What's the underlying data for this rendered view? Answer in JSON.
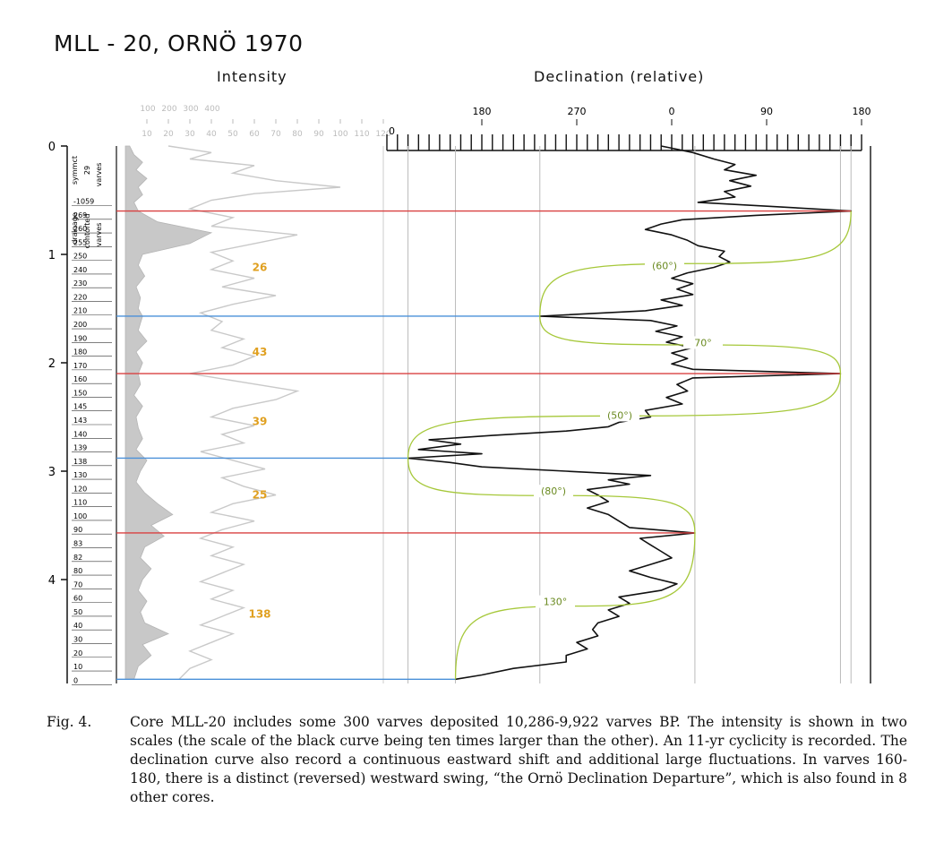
{
  "figure": {
    "title": "MLL - 20, ORNÖ 1970",
    "intensity_label": "Intensity",
    "declination_label": "Declination (relative)",
    "caption_label": "Fig. 4.",
    "caption_text": "Core MLL-20 includes some 300 varves deposited 10,286-9,922 varves BP. The intensity is shown in two scales (the scale of the black curve being ten times larger than the other). An 11-yr cyclicity is recorded. The declination curve also record a continuous eastward shift and additional large fluctuations. In varves 160-180, there is a distinct (reversed) westward swing, “the Ornö Declination Departure”, which is also found in 8 other cores."
  },
  "chart_data": {
    "type": "line",
    "depth_axis": {
      "ticks": [
        "0",
        "1",
        "2",
        "3",
        "4"
      ],
      "range": [
        0,
        5
      ]
    },
    "depth_side_labels": [
      "symmct",
      "29",
      "varves",
      "drainage",
      "contorted",
      "varves"
    ],
    "varve_labels": [
      "-1059",
      "269",
      "260",
      "255",
      "250",
      "240",
      "230",
      "220",
      "210",
      "200",
      "190",
      "180",
      "170",
      "160",
      "150",
      "145",
      "143",
      "140",
      "139",
      "138",
      "130",
      "120",
      "110",
      "100",
      "90",
      "83",
      "82",
      "80",
      "70",
      "60",
      "50",
      "40",
      "30",
      "20",
      "10",
      "0"
    ],
    "intensity_axis": {
      "top_ticks": [
        "100",
        "200",
        "300",
        "400"
      ],
      "bottom_ticks": [
        "10",
        "20",
        "30",
        "40",
        "50",
        "60",
        "70",
        "80",
        "90",
        "100",
        "110",
        "120"
      ],
      "range": [
        0,
        120
      ]
    },
    "declination_axis": {
      "ticks": [
        "180",
        "270",
        "0",
        "90",
        "180"
      ],
      "tick_values": [
        -180,
        -90,
        0,
        90,
        180
      ]
    },
    "swing_counts": [
      {
        "label": "26",
        "depth": 1.12
      },
      {
        "label": "43",
        "depth": 1.9
      },
      {
        "label": "39",
        "depth": 2.54
      },
      {
        "label": "25",
        "depth": 3.22
      },
      {
        "label": "138",
        "depth": 4.32
      }
    ],
    "swing_angles": [
      {
        "label": "(60°)",
        "depth": 1.12
      },
      {
        "label": "70°",
        "depth": 1.83
      },
      {
        "label": "(50°)",
        "depth": 2.5
      },
      {
        "label": "(80°)",
        "depth": 3.2
      },
      {
        "label": "130°",
        "depth": 4.22
      }
    ],
    "markers": [
      {
        "type": "east",
        "depth": 0.6,
        "decl": 170,
        "color": "#d94040"
      },
      {
        "type": "west",
        "depth": 1.57,
        "decl": -125,
        "color": "#4a90d9"
      },
      {
        "type": "east",
        "depth": 2.1,
        "decl": 160,
        "color": "#d94040"
      },
      {
        "type": "west",
        "depth": 2.88,
        "decl": -250,
        "color": "#4a90d9"
      },
      {
        "type": "east",
        "depth": 3.57,
        "decl": 22,
        "color": "#d94040"
      },
      {
        "type": "west",
        "depth": 4.92,
        "decl": -205,
        "color": "#4a90d9"
      }
    ],
    "declination_series": [
      [
        0.0,
        -10
      ],
      [
        0.06,
        20
      ],
      [
        0.12,
        40
      ],
      [
        0.17,
        60
      ],
      [
        0.22,
        50
      ],
      [
        0.27,
        80
      ],
      [
        0.32,
        55
      ],
      [
        0.37,
        75
      ],
      [
        0.42,
        50
      ],
      [
        0.47,
        60
      ],
      [
        0.52,
        25
      ],
      [
        0.56,
        100
      ],
      [
        0.6,
        170
      ],
      [
        0.64,
        80
      ],
      [
        0.68,
        10
      ],
      [
        0.72,
        -10
      ],
      [
        0.77,
        -25
      ],
      [
        0.82,
        0
      ],
      [
        0.87,
        15
      ],
      [
        0.92,
        25
      ],
      [
        0.97,
        50
      ],
      [
        1.02,
        45
      ],
      [
        1.07,
        55
      ],
      [
        1.12,
        40
      ],
      [
        1.17,
        15
      ],
      [
        1.22,
        0
      ],
      [
        1.27,
        20
      ],
      [
        1.32,
        5
      ],
      [
        1.37,
        20
      ],
      [
        1.42,
        -10
      ],
      [
        1.47,
        10
      ],
      [
        1.52,
        -25
      ],
      [
        1.57,
        -125
      ],
      [
        1.61,
        -20
      ],
      [
        1.66,
        5
      ],
      [
        1.71,
        -15
      ],
      [
        1.76,
        10
      ],
      [
        1.81,
        -5
      ],
      [
        1.86,
        20
      ],
      [
        1.91,
        0
      ],
      [
        1.96,
        15
      ],
      [
        2.01,
        0
      ],
      [
        2.06,
        20
      ],
      [
        2.1,
        160
      ],
      [
        2.14,
        20
      ],
      [
        2.2,
        5
      ],
      [
        2.26,
        15
      ],
      [
        2.32,
        -5
      ],
      [
        2.38,
        10
      ],
      [
        2.44,
        -25
      ],
      [
        2.5,
        -20
      ],
      [
        2.55,
        -50
      ],
      [
        2.59,
        -60
      ],
      [
        2.63,
        -100
      ],
      [
        2.67,
        -170
      ],
      [
        2.71,
        -230
      ],
      [
        2.75,
        -200
      ],
      [
        2.8,
        -240
      ],
      [
        2.84,
        -180
      ],
      [
        2.88,
        -250
      ],
      [
        2.92,
        -210
      ],
      [
        2.96,
        -180
      ],
      [
        3.0,
        -100
      ],
      [
        3.04,
        -20
      ],
      [
        3.08,
        -60
      ],
      [
        3.12,
        -40
      ],
      [
        3.17,
        -80
      ],
      [
        3.22,
        -70
      ],
      [
        3.28,
        -60
      ],
      [
        3.34,
        -80
      ],
      [
        3.4,
        -60
      ],
      [
        3.46,
        -50
      ],
      [
        3.52,
        -40
      ],
      [
        3.57,
        22
      ],
      [
        3.62,
        -30
      ],
      [
        3.68,
        -20
      ],
      [
        3.74,
        -10
      ],
      [
        3.8,
        0
      ],
      [
        3.86,
        -20
      ],
      [
        3.92,
        -40
      ],
      [
        3.98,
        -20
      ],
      [
        4.04,
        5
      ],
      [
        4.1,
        -10
      ],
      [
        4.16,
        -50
      ],
      [
        4.22,
        -40
      ],
      [
        4.28,
        -60
      ],
      [
        4.34,
        -50
      ],
      [
        4.4,
        -70
      ],
      [
        4.46,
        -75
      ],
      [
        4.52,
        -70
      ],
      [
        4.58,
        -90
      ],
      [
        4.64,
        -80
      ],
      [
        4.7,
        -100
      ],
      [
        4.76,
        -100
      ],
      [
        4.82,
        -150
      ],
      [
        4.88,
        -180
      ],
      [
        4.92,
        -205
      ]
    ],
    "intensity_black_series": [
      [
        0.0,
        2
      ],
      [
        0.08,
        4
      ],
      [
        0.15,
        8
      ],
      [
        0.22,
        5
      ],
      [
        0.3,
        10
      ],
      [
        0.38,
        6
      ],
      [
        0.45,
        8
      ],
      [
        0.52,
        4
      ],
      [
        0.6,
        6
      ],
      [
        0.7,
        15
      ],
      [
        0.8,
        40
      ],
      [
        0.9,
        30
      ],
      [
        1.0,
        8
      ],
      [
        1.1,
        6
      ],
      [
        1.2,
        9
      ],
      [
        1.3,
        5
      ],
      [
        1.4,
        7
      ],
      [
        1.5,
        6
      ],
      [
        1.57,
        8
      ],
      [
        1.7,
        6
      ],
      [
        1.8,
        10
      ],
      [
        1.9,
        5
      ],
      [
        2.0,
        8
      ],
      [
        2.1,
        6
      ],
      [
        2.2,
        7
      ],
      [
        2.3,
        4
      ],
      [
        2.4,
        8
      ],
      [
        2.5,
        5
      ],
      [
        2.6,
        6
      ],
      [
        2.7,
        8
      ],
      [
        2.8,
        5
      ],
      [
        2.9,
        10
      ],
      [
        3.0,
        7
      ],
      [
        3.1,
        5
      ],
      [
        3.2,
        9
      ],
      [
        3.3,
        15
      ],
      [
        3.4,
        22
      ],
      [
        3.5,
        12
      ],
      [
        3.6,
        18
      ],
      [
        3.7,
        9
      ],
      [
        3.8,
        7
      ],
      [
        3.9,
        12
      ],
      [
        4.0,
        8
      ],
      [
        4.1,
        6
      ],
      [
        4.2,
        10
      ],
      [
        4.3,
        7
      ],
      [
        4.4,
        9
      ],
      [
        4.5,
        20
      ],
      [
        4.6,
        8
      ],
      [
        4.7,
        12
      ],
      [
        4.8,
        6
      ],
      [
        4.92,
        4
      ]
    ],
    "intensity_gray_series": [
      [
        0.0,
        20
      ],
      [
        0.06,
        40
      ],
      [
        0.12,
        30
      ],
      [
        0.18,
        60
      ],
      [
        0.25,
        50
      ],
      [
        0.32,
        70
      ],
      [
        0.38,
        100
      ],
      [
        0.44,
        60
      ],
      [
        0.5,
        40
      ],
      [
        0.58,
        30
      ],
      [
        0.66,
        50
      ],
      [
        0.74,
        40
      ],
      [
        0.82,
        80
      ],
      [
        0.9,
        60
      ],
      [
        0.98,
        40
      ],
      [
        1.06,
        50
      ],
      [
        1.14,
        40
      ],
      [
        1.22,
        60
      ],
      [
        1.3,
        45
      ],
      [
        1.38,
        70
      ],
      [
        1.46,
        50
      ],
      [
        1.54,
        35
      ],
      [
        1.62,
        45
      ],
      [
        1.7,
        40
      ],
      [
        1.78,
        55
      ],
      [
        1.86,
        45
      ],
      [
        1.94,
        60
      ],
      [
        2.02,
        50
      ],
      [
        2.1,
        30
      ],
      [
        2.18,
        55
      ],
      [
        2.26,
        80
      ],
      [
        2.34,
        70
      ],
      [
        2.42,
        50
      ],
      [
        2.5,
        40
      ],
      [
        2.58,
        60
      ],
      [
        2.66,
        45
      ],
      [
        2.74,
        55
      ],
      [
        2.82,
        35
      ],
      [
        2.9,
        50
      ],
      [
        2.98,
        65
      ],
      [
        3.06,
        45
      ],
      [
        3.14,
        55
      ],
      [
        3.22,
        70
      ],
      [
        3.3,
        50
      ],
      [
        3.38,
        40
      ],
      [
        3.46,
        60
      ],
      [
        3.54,
        45
      ],
      [
        3.62,
        35
      ],
      [
        3.7,
        50
      ],
      [
        3.78,
        40
      ],
      [
        3.86,
        55
      ],
      [
        3.94,
        45
      ],
      [
        4.02,
        35
      ],
      [
        4.1,
        50
      ],
      [
        4.18,
        40
      ],
      [
        4.26,
        55
      ],
      [
        4.34,
        45
      ],
      [
        4.42,
        35
      ],
      [
        4.5,
        50
      ],
      [
        4.58,
        40
      ],
      [
        4.66,
        30
      ],
      [
        4.74,
        40
      ],
      [
        4.82,
        30
      ],
      [
        4.92,
        25
      ]
    ],
    "grid": false
  }
}
